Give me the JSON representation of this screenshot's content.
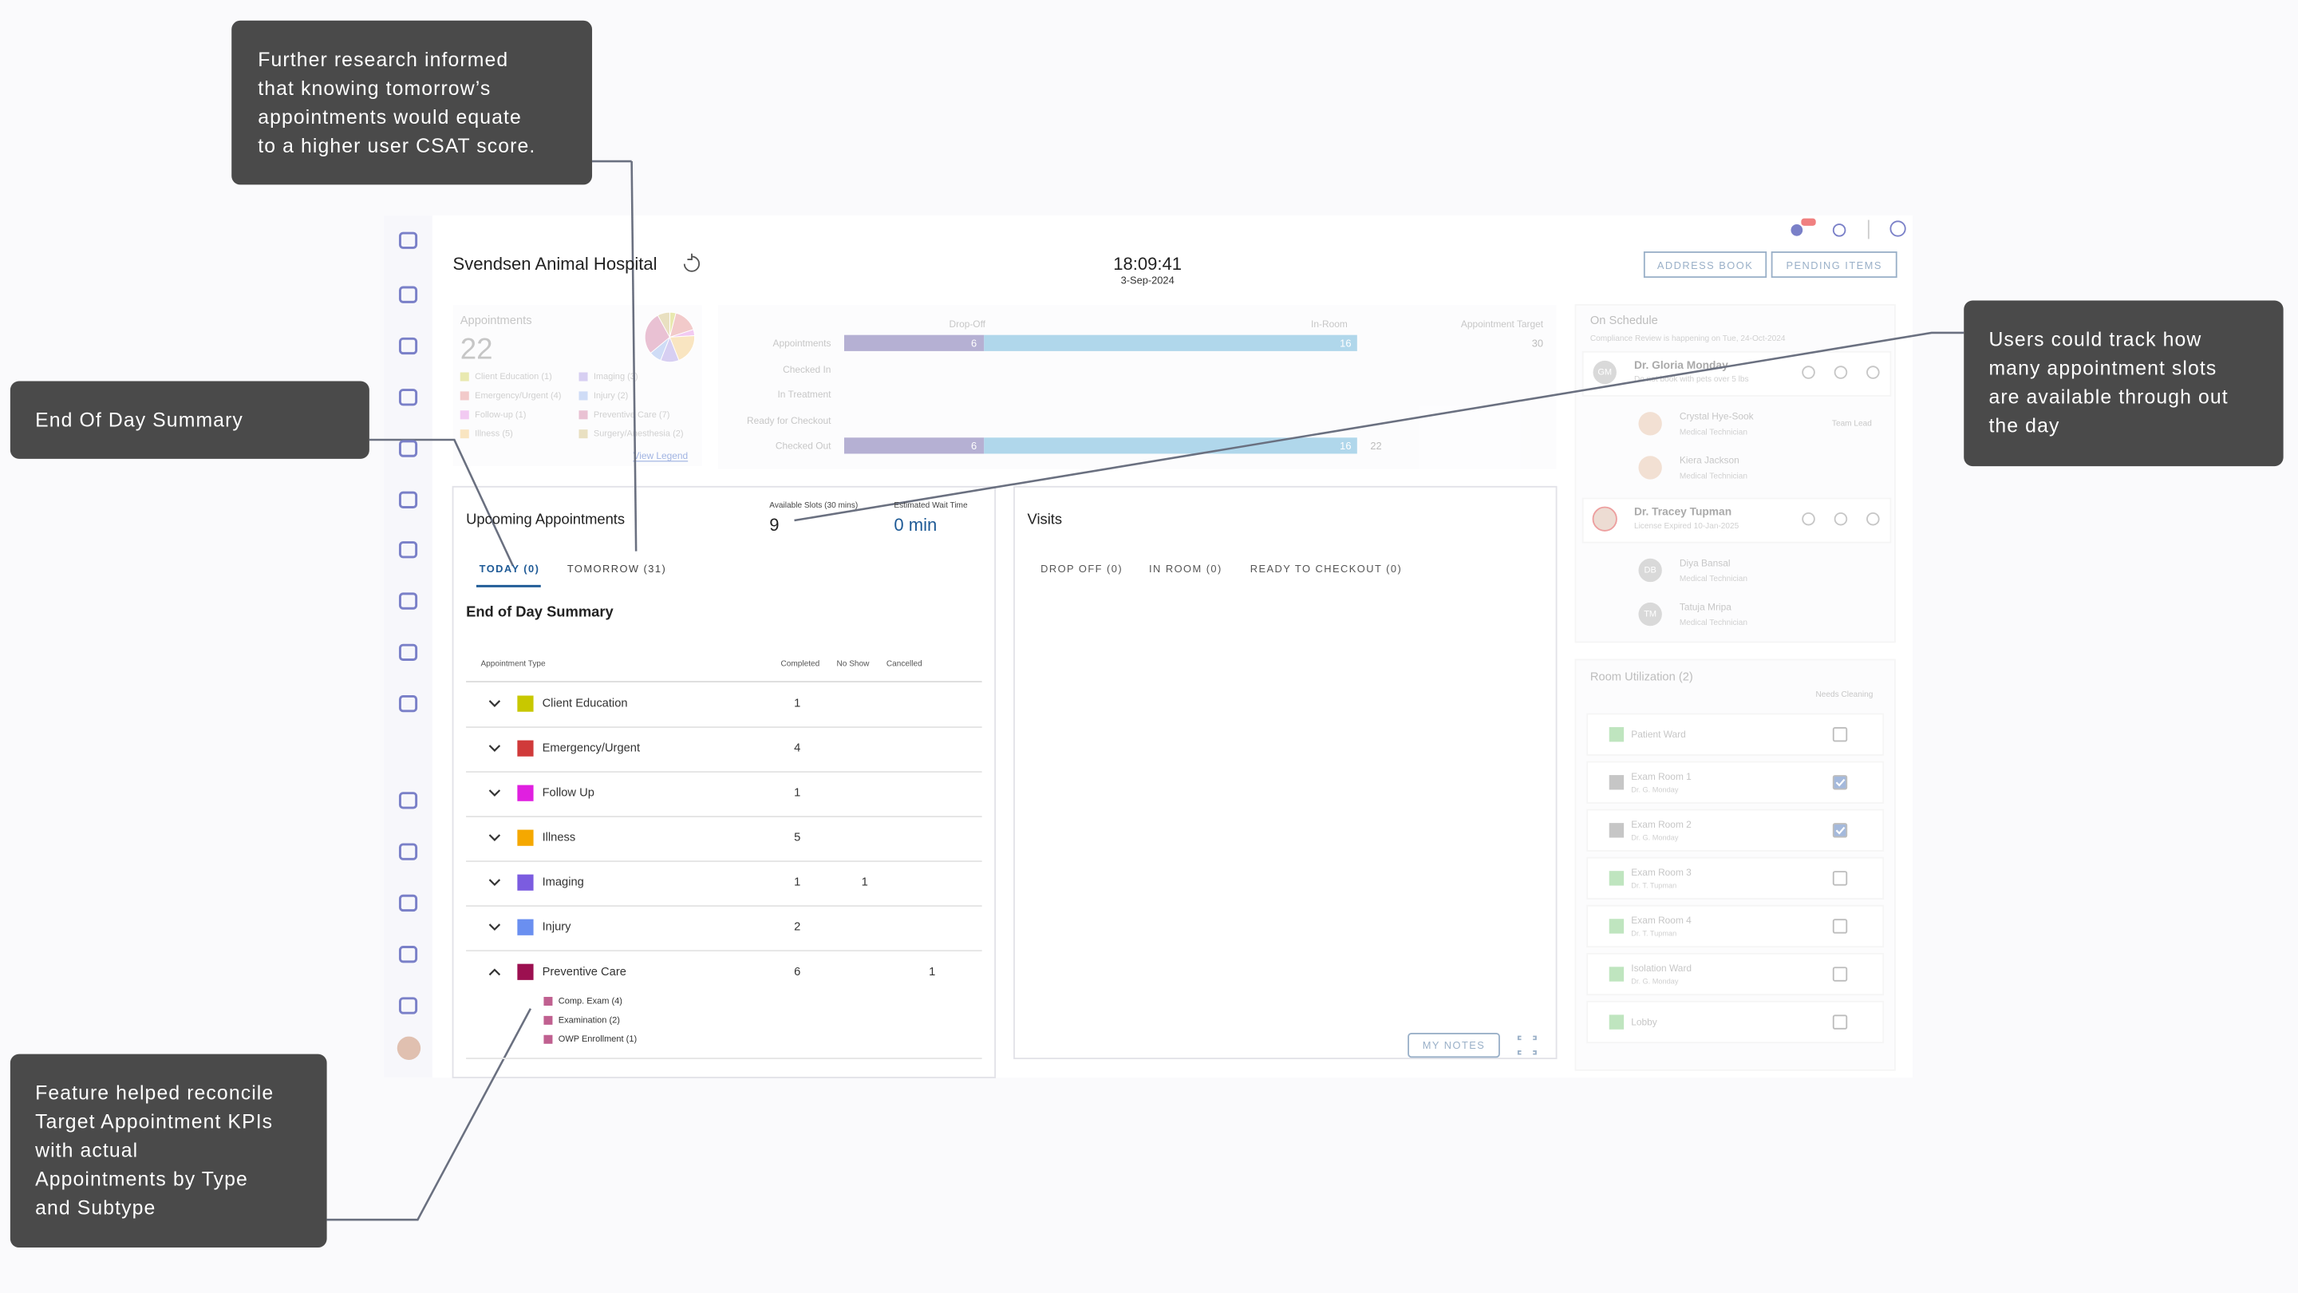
{
  "annotations": [
    {
      "lines": [
        "Further research informed",
        "that knowing tomorrow’s",
        "appointments would equate",
        "to a higher user CSAT score."
      ]
    },
    {
      "lines": [
        "End Of Day Summary"
      ]
    },
    {
      "lines": [
        "Users could track how",
        "many appointment slots",
        "are available through out",
        "the day"
      ]
    },
    {
      "lines": [
        "Feature helped reconcile",
        "Target Appointment KPIs",
        "with actual",
        "Appointments by Type",
        "and Subtype"
      ]
    }
  ],
  "header": {
    "hospital": "Svendsen Animal Hospital",
    "time": "18:09:41",
    "date": "3-Sep-2024",
    "buttons": [
      "ADDRESS BOOK",
      "PENDING ITEMS"
    ]
  },
  "kpi": {
    "label": "Appointments",
    "value": 22,
    "legend": [
      {
        "label": "Client Education (1)",
        "value": 1,
        "color": "#d8d870"
      },
      {
        "label": "Emergency/Urgent (4)",
        "value": 4,
        "color": "#e8a0a0"
      },
      {
        "label": "Follow-up (1)",
        "value": 1,
        "color": "#e8a0e8"
      },
      {
        "label": "Illness (5)",
        "value": 5,
        "color": "#f5d090"
      },
      {
        "label": "Imaging (3)",
        "value": 3,
        "color": "#b8a8e8"
      },
      {
        "label": "Injury (2)",
        "value": 2,
        "color": "#a8c0f0"
      },
      {
        "label": "Preventive Care (7)",
        "value": 7,
        "color": "#d890b0"
      },
      {
        "label": "Surgery/Anesthesia (2)",
        "value": 2,
        "color": "#d8c890"
      }
    ],
    "view_legend": "View Legend"
  },
  "flow": {
    "columns": [
      "Drop-Off",
      "In-Room",
      "Appointment Target"
    ],
    "rows": [
      {
        "label": "Appointments",
        "drop_off": 6,
        "in_room": 16,
        "target": 30
      },
      {
        "label": "Checked In"
      },
      {
        "label": "In Treatment"
      },
      {
        "label": "Ready for Checkout"
      },
      {
        "label": "Checked Out",
        "drop_off": 6,
        "in_room": 16,
        "total": 22
      }
    ]
  },
  "upcoming": {
    "title": "Upcoming Appointments",
    "slots_label": "Available Slots (30 mins)",
    "slots": 9,
    "wait_label": "Estimated Wait Time",
    "wait": "0 min",
    "tabs": [
      "TODAY (0)",
      "TOMORROW (31)"
    ],
    "section": "End of Day Summary",
    "columns": [
      "Appointment Type",
      "Completed",
      "No Show",
      "Cancelled"
    ],
    "rows": [
      {
        "type": "Client Education",
        "color": "#c8c800",
        "completed": 1
      },
      {
        "type": "Emergency/Urgent",
        "color": "#d03a3a",
        "completed": 4
      },
      {
        "type": "Follow Up",
        "color": "#e020e0",
        "completed": 1
      },
      {
        "type": "Illness",
        "color": "#f5a800",
        "completed": 5
      },
      {
        "type": "Imaging",
        "color": "#7b5ce0",
        "completed": 1,
        "no_show": 1
      },
      {
        "type": "Injury",
        "color": "#6a8ff0",
        "completed": 2
      },
      {
        "type": "Preventive Care",
        "color": "#9c1050",
        "completed": 6,
        "cancelled": 1,
        "subtypes": [
          "Comp. Exam (4)",
          "Examination (2)",
          "OWP Enrollment (1)"
        ]
      }
    ]
  },
  "visits": {
    "title": "Visits",
    "tabs": [
      "DROP OFF (0)",
      "IN ROOM (0)",
      "READY TO CHECKOUT (0)"
    ],
    "notes": "MY NOTES"
  },
  "schedule": {
    "title": "On Schedule",
    "note": "Compliance Review is happening on Tue, 24-Oct-2024",
    "doctors": [
      {
        "name": "Dr. Gloria Monday",
        "initials": "GM",
        "note": "Do not book with pets over 5 lbs",
        "staff": [
          {
            "name": "Crystal Hye-Sook",
            "role": "Medical Technician",
            "tag": "Team Lead"
          },
          {
            "name": "Kiera Jackson",
            "role": "Medical Technician"
          }
        ]
      },
      {
        "name": "Dr. Tracey Tupman",
        "note": "License Expired 10-Jan-2025",
        "staff": [
          {
            "initials": "DB",
            "name": "Diya Bansal",
            "role": "Medical Technician"
          },
          {
            "initials": "TM",
            "name": "Tatuja Mripa",
            "role": "Medical Technician"
          }
        ]
      }
    ]
  },
  "rooms": {
    "title": "Room Utilization (2)",
    "column": "Needs Cleaning",
    "rooms": [
      {
        "name": "Patient Ward",
        "needs_cleaning": false
      },
      {
        "name": "Exam Room 1",
        "doctor": "Dr. G. Monday",
        "needs_cleaning": true
      },
      {
        "name": "Exam Room 2",
        "doctor": "Dr. G. Monday",
        "needs_cleaning": true
      },
      {
        "name": "Exam Room 3",
        "doctor": "Dr. T. Tupman",
        "needs_cleaning": false
      },
      {
        "name": "Exam Room 4",
        "doctor": "Dr. T. Tupman",
        "needs_cleaning": false
      },
      {
        "name": "Isolation Ward",
        "doctor": "Dr. G. Monday",
        "needs_cleaning": false
      },
      {
        "name": "Lobby",
        "needs_cleaning": false
      }
    ]
  }
}
